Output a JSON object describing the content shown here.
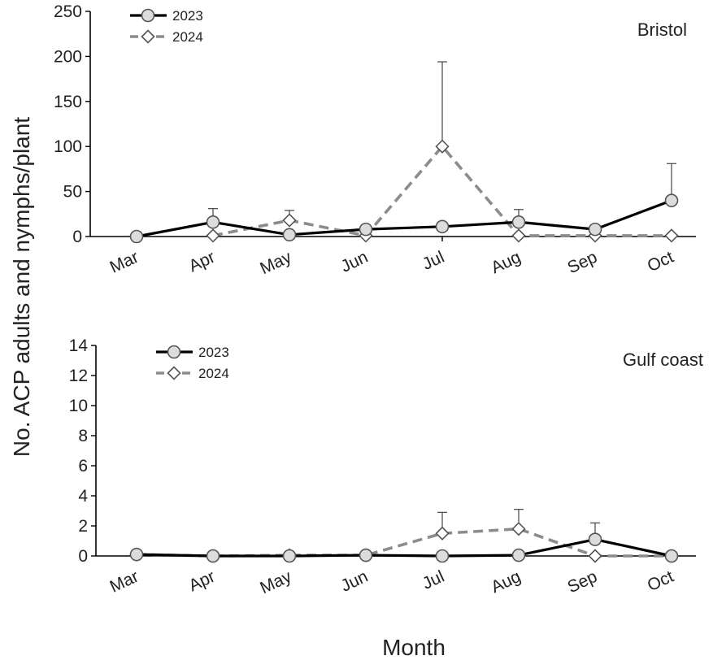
{
  "ylabel": "No.  ACP adults and nymphs/plant",
  "xlabel": "Month",
  "colors": {
    "series_2023": "#000000",
    "series_2024": "#8c8c8c",
    "marker_fill": "#dcdcdc",
    "axis": "#000000"
  },
  "chart_data": [
    {
      "type": "line",
      "title": "Bristol",
      "categories": [
        "Mar",
        "Apr",
        "May",
        "Jun",
        "Jul",
        "Aug",
        "Sep",
        "Oct"
      ],
      "ylim": [
        0,
        250
      ],
      "yticks": [
        0,
        50,
        100,
        150,
        200,
        250
      ],
      "legend_position": "top-left",
      "grid": false,
      "series": [
        {
          "name": "2023",
          "style": "solid",
          "marker": "circle",
          "values": [
            0,
            16,
            2,
            8,
            11,
            16,
            8,
            40
          ],
          "error_upper": [
            null,
            31,
            null,
            null,
            null,
            30,
            null,
            81
          ]
        },
        {
          "name": "2024",
          "style": "dashed",
          "marker": "diamond",
          "values": [
            null,
            1,
            18,
            1,
            100,
            1,
            1,
            1
          ],
          "error_upper": [
            null,
            null,
            29,
            null,
            194,
            null,
            null,
            null
          ]
        }
      ]
    },
    {
      "type": "line",
      "title": "Gulf coast",
      "categories": [
        "Mar",
        "Apr",
        "May",
        "Jun",
        "Jul",
        "Aug",
        "Sep",
        "Oct"
      ],
      "ylim": [
        0,
        14
      ],
      "yticks": [
        0,
        2,
        4,
        6,
        8,
        10,
        12,
        14
      ],
      "legend_position": "top-left",
      "grid": false,
      "series": [
        {
          "name": "2023",
          "style": "solid",
          "marker": "circle",
          "values": [
            0.1,
            0,
            0,
            0.05,
            0,
            0.05,
            1.1,
            0
          ],
          "error_upper": [
            null,
            null,
            null,
            null,
            null,
            null,
            2.2,
            null
          ]
        },
        {
          "name": "2024",
          "style": "dashed",
          "marker": "diamond",
          "values": [
            0.1,
            0,
            0.05,
            0.05,
            1.5,
            1.8,
            0,
            0
          ],
          "error_upper": [
            null,
            null,
            null,
            null,
            2.9,
            3.1,
            null,
            null
          ]
        }
      ]
    }
  ]
}
